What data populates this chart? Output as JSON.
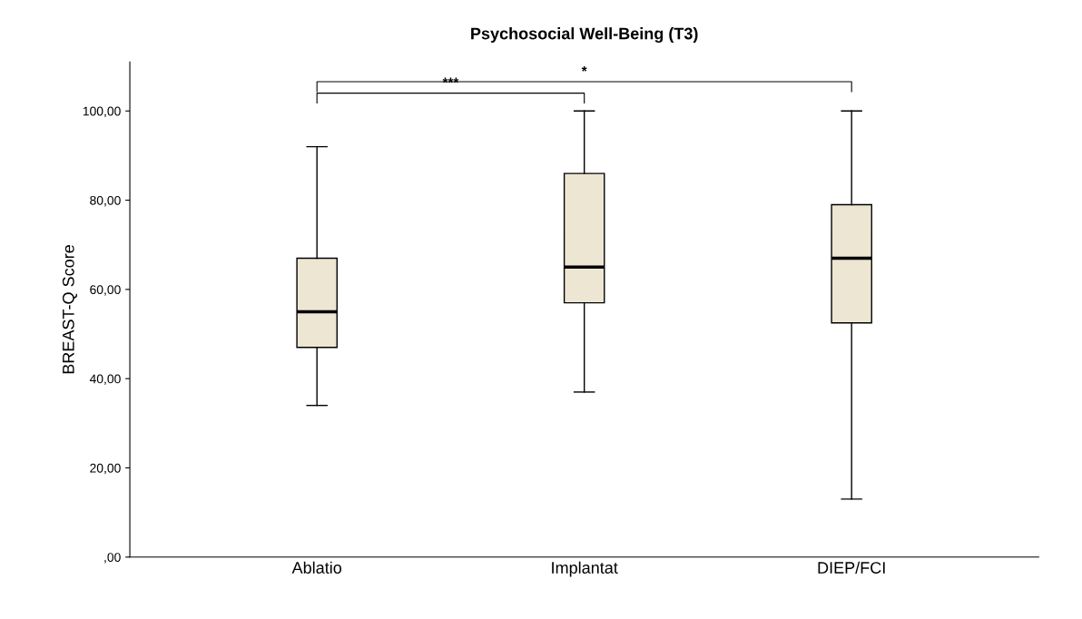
{
  "chart_data": {
    "type": "box",
    "title": "Psychosocial Well-Being (T3)",
    "ylabel": "BREAST-Q Score",
    "categories": [
      "Ablatio",
      "Implantat",
      "DIEP/FCI"
    ],
    "boxes": [
      {
        "low": 34,
        "q1": 47,
        "median": 55,
        "q3": 67,
        "high": 92
      },
      {
        "low": 37,
        "q1": 57,
        "median": 65,
        "q3": 86,
        "high": 100
      },
      {
        "low": 13,
        "q1": 52.5,
        "median": 67,
        "q3": 79,
        "high": 100
      }
    ],
    "color": "#ede6d2",
    "ylim": [
      0,
      111
    ],
    "yticks": [
      {
        "value": 0,
        "label": ",00"
      },
      {
        "value": 20,
        "label": "20,00"
      },
      {
        "value": 40,
        "label": "40,00"
      },
      {
        "value": 60,
        "label": "60,00"
      },
      {
        "value": 80,
        "label": "80,00"
      },
      {
        "value": 100,
        "label": "100,00"
      }
    ],
    "grid": false,
    "annotations": [
      "***",
      "*"
    ]
  }
}
